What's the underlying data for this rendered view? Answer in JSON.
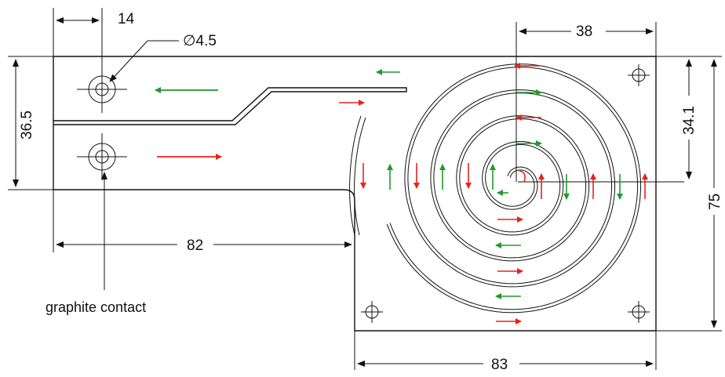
{
  "dimensions": {
    "hole_offset": "14",
    "hole_diameter": "∅4.5",
    "left_height": "36.5",
    "spiral_radius": "38",
    "spiral_vertical": "34.1",
    "total_height": "75",
    "arm_length": "82",
    "base_width": "83"
  },
  "labels": {
    "contact": "graphite contact"
  },
  "colors": {
    "red_arrow": "#e8231c",
    "green_arrow": "#1f9a2e",
    "line": "#111111"
  }
}
